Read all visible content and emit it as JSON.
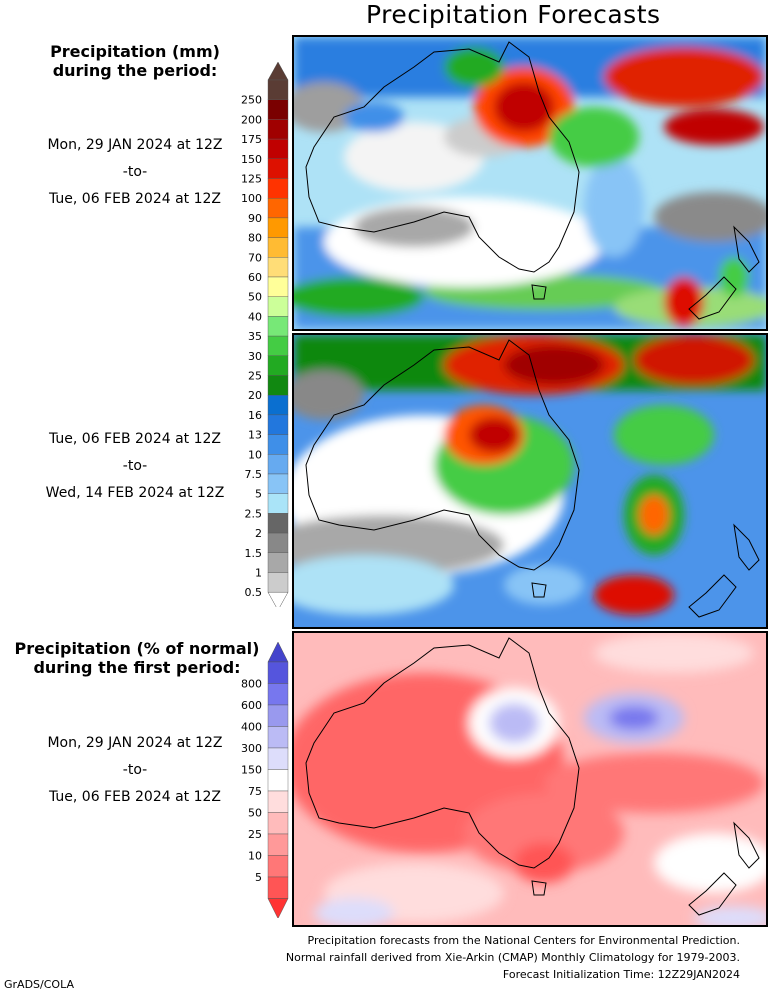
{
  "title": "Precipitation Forecasts",
  "amount_legend": {
    "heading": [
      "Precipitation (mm)",
      "during the period:"
    ],
    "bins": [
      "250",
      "200",
      "175",
      "150",
      "125",
      "100",
      "90",
      "80",
      "70",
      "60",
      "50",
      "40",
      "35",
      "30",
      "25",
      "20",
      "16",
      "13",
      "10",
      "7.5",
      "5",
      "2.5",
      "2",
      "1.5",
      "1",
      "0.5"
    ],
    "colors": [
      "#5a3c34",
      "#7a0000",
      "#a00000",
      "#c00000",
      "#dd1100",
      "#ff3300",
      "#ff6600",
      "#ff9900",
      "#ffbb33",
      "#ffdd77",
      "#ffff99",
      "#ccff99",
      "#77e877",
      "#44cc44",
      "#22aa22",
      "#118811",
      "#0a6fd0",
      "#2277dd",
      "#3f8fe8",
      "#66aaf0",
      "#88c4f6",
      "#aae4f8",
      "#666666",
      "#888888",
      "#a8a8a8",
      "#cccccc"
    ],
    "top_triangle_color": "#5a3c34",
    "bottom_triangle_color": "#ffffff"
  },
  "percent_legend": {
    "heading": [
      "Precipitation (% of normal)",
      "during the first period:"
    ],
    "bins": [
      "800",
      "600",
      "400",
      "300",
      "150",
      "75",
      "50",
      "25",
      "10",
      "5"
    ],
    "colors": [
      "#5555dd",
      "#7777ee",
      "#9999ee",
      "#bbbbf5",
      "#ddddfb",
      "#ffffff",
      "#ffdddd",
      "#ffbbbb",
      "#ff9999",
      "#ff7777",
      "#ff5555"
    ],
    "top_triangle_color": "#4444cc",
    "bottom_triangle_color": "#ff3333"
  },
  "periods": [
    {
      "start": "Mon, 29 JAN 2024 at 12Z",
      "sep": "-to-",
      "end": "Tue, 06 FEB 2024 at 12Z"
    },
    {
      "start": "Tue, 06 FEB 2024 at 12Z",
      "sep": "-to-",
      "end": "Wed, 14 FEB 2024 at 12Z"
    },
    {
      "start": "Mon, 29 JAN 2024 at 12Z",
      "sep": "-to-",
      "end": "Tue, 06 FEB 2024 at 12Z"
    }
  ],
  "footer": [
    "Precipitation forecasts from the National Centers for Environmental Prediction.",
    "Normal rainfall derived from Xie-Arkin (CMAP) Monthly Climatology for 1979-2003.",
    "Forecast Initialization Time: 12Z29JAN2024"
  ],
  "credit": "GrADS/COLA"
}
